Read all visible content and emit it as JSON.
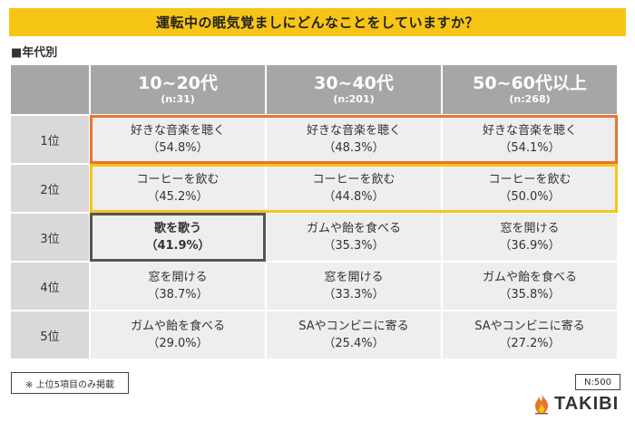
{
  "header": {
    "title": "運転中の眠気覚ましにどんなことをしていますか？"
  },
  "subtitle": "■年代別",
  "colors": {
    "banner": "#f6c516",
    "rank1_border": "#e8762d",
    "rank2_border": "#f6c516",
    "highlight_border": "#555555"
  },
  "chart_data": {
    "type": "table",
    "columns": [
      {
        "age": "10~20代",
        "n": "(n:31)"
      },
      {
        "age": "30~40代",
        "n": "(n:201)"
      },
      {
        "age": "50~60代以上",
        "n": "(n:268)"
      }
    ],
    "rows": [
      {
        "rank": "1位",
        "cells": [
          {
            "label": "好きな音楽を聴く",
            "value": "（54.8%）"
          },
          {
            "label": "好きな音楽を聴く",
            "value": "（48.3%）"
          },
          {
            "label": "好きな音楽を聴く",
            "value": "（54.1%）"
          }
        ]
      },
      {
        "rank": "2位",
        "cells": [
          {
            "label": "コーヒーを飲む",
            "value": "（45.2%）"
          },
          {
            "label": "コーヒーを飲む",
            "value": "（44.8%）"
          },
          {
            "label": "コーヒーを飲む",
            "value": "（50.0%）"
          }
        ]
      },
      {
        "rank": "3位",
        "cells": [
          {
            "label": "歌を歌う",
            "value": "（41.9%）"
          },
          {
            "label": "ガムや飴を食べる",
            "value": "（35.3%）"
          },
          {
            "label": "窓を開ける",
            "value": "（36.9%）"
          }
        ]
      },
      {
        "rank": "4位",
        "cells": [
          {
            "label": "窓を開ける",
            "value": "（38.7%）"
          },
          {
            "label": "窓を開ける",
            "value": "（33.3%）"
          },
          {
            "label": "ガムや飴を食べる",
            "value": "（35.8%）"
          }
        ]
      },
      {
        "rank": "5位",
        "cells": [
          {
            "label": "ガムや飴を食べる",
            "value": "（29.0%）"
          },
          {
            "label": "SAやコンビニに寄る",
            "value": "（25.4%）"
          },
          {
            "label": "SAやコンビニに寄る",
            "value": "（27.2%）"
          }
        ]
      }
    ]
  },
  "footer": {
    "note": "※ 上位5項目のみ掲載",
    "n_total": "N:500",
    "brand": "TAKIBI",
    "brand_icon": "flame-icon"
  }
}
